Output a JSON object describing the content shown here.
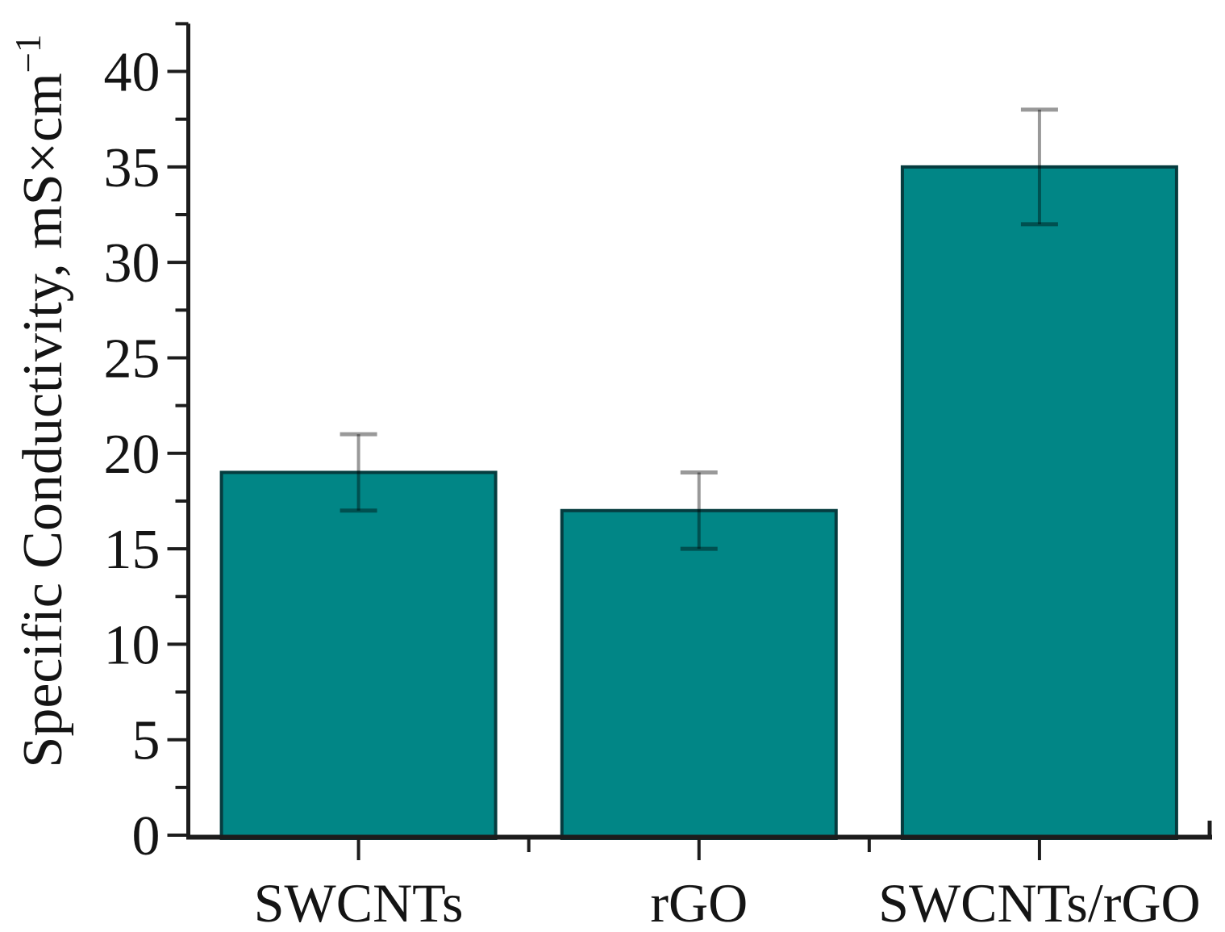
{
  "chart_data": {
    "type": "bar",
    "title": "",
    "categories": [
      "SWCNTs",
      "rGO",
      "SWCNTs/rGO"
    ],
    "values": [
      19,
      17,
      35
    ],
    "errors": [
      2,
      2,
      3
    ],
    "xlabel": "",
    "ylabel": "Specific Conductivity, mS×cm⁻¹",
    "ylabel_parts": {
      "main": "Specific Conductivity, mS×cm",
      "superscript": "−1"
    },
    "yticks": [
      0,
      5,
      10,
      15,
      20,
      25,
      30,
      35,
      40
    ],
    "ytick_minor_step": 2.5,
    "ylim": [
      0,
      42.5
    ],
    "grid": false,
    "legend": false,
    "colors": {
      "bar_fill": "#018686",
      "bar_border": "#063c3f",
      "error_bar": "rgba(0,0,0,0.40)",
      "axis": "#1c1c1c",
      "text": "#141414",
      "background": "#ffffff"
    }
  }
}
